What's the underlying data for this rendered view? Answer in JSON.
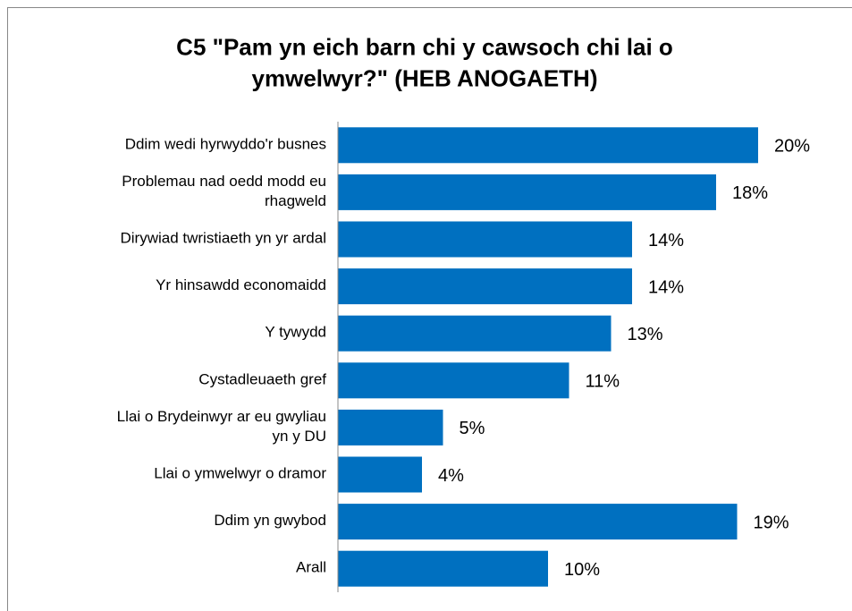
{
  "chart_data": {
    "type": "bar",
    "orientation": "horizontal",
    "title": "C5 \"Pam yn eich barn chi y cawsoch chi lai o ymwelwyr?\" (HEB ANOGAETH)",
    "categories": [
      "Ddim wedi hyrwyddo'r busnes",
      "Problemau nad oedd modd eu rhagweld",
      "Dirywiad twristiaeth yn yr ardal",
      "Yr hinsawdd economaidd",
      "Y tywydd",
      "Cystadleuaeth gref",
      "Llai o Brydeinwyr ar eu gwyliau yn y DU",
      "Llai o ymwelwyr o dramor",
      "Ddim yn gwybod",
      "Arall"
    ],
    "values": [
      20,
      18,
      14,
      14,
      13,
      11,
      5,
      4,
      19,
      10
    ],
    "value_labels": [
      "20%",
      "18%",
      "14%",
      "14%",
      "13%",
      "11%",
      "5%",
      "4%",
      "19%",
      "10%"
    ],
    "color": "#0070c0",
    "xlim": [
      0,
      24
    ]
  }
}
